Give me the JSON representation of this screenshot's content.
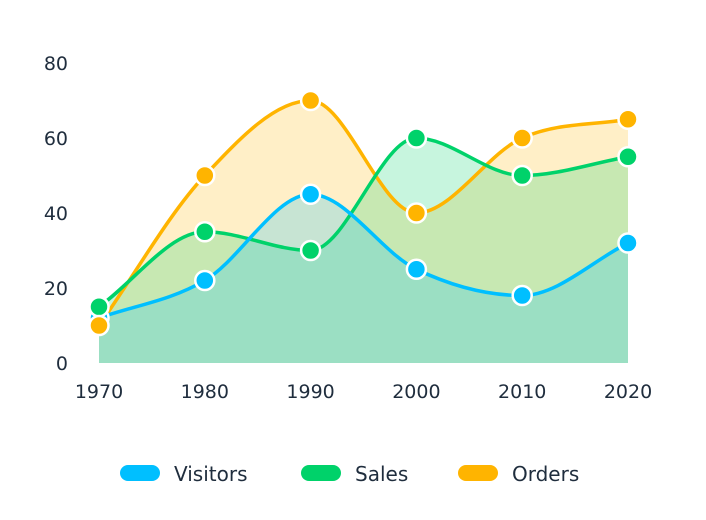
{
  "chart_data": {
    "type": "area",
    "x": [
      1970,
      1980,
      1990,
      2000,
      2010,
      2020
    ],
    "categories": [
      "1970",
      "1980",
      "1990",
      "2000",
      "2010",
      "2020"
    ],
    "series": [
      {
        "name": "Visitors",
        "values": [
          12,
          22,
          45,
          25,
          18,
          32
        ],
        "color": "#00bfff"
      },
      {
        "name": "Sales",
        "values": [
          15,
          35,
          30,
          60,
          50,
          55
        ],
        "color": "#00d26a"
      },
      {
        "name": "Orders",
        "values": [
          10,
          50,
          70,
          40,
          60,
          65
        ],
        "color": "#ffb400"
      }
    ],
    "ylim": [
      0,
      80
    ],
    "yticks": [
      0,
      20,
      40,
      60,
      80
    ],
    "title": "",
    "xlabel": "",
    "ylabel": "",
    "grid": false,
    "legend": "bottom",
    "curve": "smooth",
    "markers": true
  }
}
